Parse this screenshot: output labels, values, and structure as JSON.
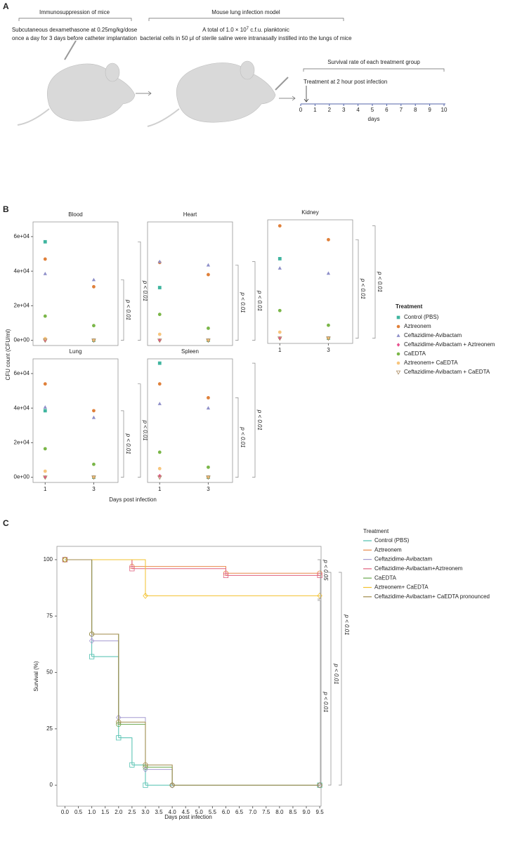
{
  "panel_labels": [
    "A",
    "B",
    "C"
  ],
  "schematic": {
    "immunosuppression": {
      "title": "Immunosuppression of mice",
      "lines": [
        "Subcutaneous dexamethasone at 0.25mg/kg/dose",
        "once a day for 3 days before catheter implantation"
      ]
    },
    "infection": {
      "title": "Mouse  lung infection model",
      "line1": [
        "A total of 1.0 × 10",
        "7",
        " c.f.u. planktonic"
      ],
      "line2": "bacterial cells in 50 μl of sterile saline were intranasally instilled into the lungs of mice"
    },
    "survival": {
      "title": "Survival rate of each treatment group",
      "treatment": "Treatment at 2 hour post infection",
      "ticks": [
        0,
        1,
        2,
        3,
        4,
        5,
        6,
        7,
        8,
        9,
        10
      ],
      "label": "days"
    }
  },
  "chart_data": [
    {
      "type": "faceted_scatter",
      "y_label": "CFU count (CFU/ml)",
      "x_label": "Days post infection",
      "x": [
        1,
        3
      ],
      "xlim": [
        0.5,
        4
      ],
      "xticks": [
        1,
        3
      ],
      "ylim": [
        -3000,
        68500
      ],
      "yticks": [
        {
          "value": 0,
          "label": "0e+00"
        },
        {
          "value": 20000,
          "label": "2e+04"
        },
        {
          "value": 40000,
          "label": "4e+04"
        },
        {
          "value": 60000,
          "label": "6e+04"
        }
      ],
      "legend_title": "Treatment",
      "series": [
        {
          "name": "Control (PBS)",
          "color": "#3fb59f",
          "marker": "square"
        },
        {
          "name": "Aztreonem",
          "color": "#e0803a",
          "marker": "circle"
        },
        {
          "name": "Ceftazidime-Avibactam",
          "color": "#8e8fc9",
          "marker": "triangle"
        },
        {
          "name": "Ceftazidime-Avibactam + Aztreonem",
          "color": "#e8508f",
          "marker": "diamond"
        },
        {
          "name": "CaEDTA",
          "color": "#7ab648",
          "marker": "circle"
        },
        {
          "name": "Aztreonem+ CaEDTA",
          "color": "#f7c57d",
          "marker": "circle"
        },
        {
          "name": "Ceftazidime-Avibactam + CaEDTA",
          "color": "#a8875e",
          "marker": "triangle-down-open"
        }
      ],
      "facets": [
        {
          "title": "Blood",
          "values": [
            [
              57000,
              0
            ],
            [
              47000,
              31000
            ],
            [
              38500,
              35000
            ],
            [
              0,
              0
            ],
            [
              14000,
              8500
            ],
            [
              1000,
              0
            ],
            [
              0,
              0
            ]
          ],
          "annotations": [
            "p < 0.01",
            "p < 0.01"
          ]
        },
        {
          "title": "Heart",
          "values": [
            [
              30500,
              0
            ],
            [
              45000,
              38000
            ],
            [
              45500,
              43500
            ],
            [
              0,
              0
            ],
            [
              15000,
              7000
            ],
            [
              3500,
              0
            ],
            [
              0,
              0
            ]
          ],
          "annotations": [
            "p < 0.01",
            "p < 0.01"
          ]
        },
        {
          "title": "Kidney",
          "values": [
            [
              46000,
              0
            ],
            [
              65000,
              57000
            ],
            [
              40500,
              37500
            ],
            [
              0,
              0
            ],
            [
              16000,
              7500
            ],
            [
              3500,
              0
            ],
            [
              0,
              0
            ]
          ],
          "annotations": [
            "p < 0.01",
            "p < 0.01"
          ]
        },
        {
          "title": "Lung",
          "values": [
            [
              38500,
              0
            ],
            [
              54000,
              38500
            ],
            [
              40500,
              34500
            ],
            [
              0,
              0
            ],
            [
              16500,
              7500
            ],
            [
              3500,
              0
            ],
            [
              0,
              0
            ]
          ],
          "annotations": [
            "p < 0.01",
            "p < 0.01"
          ]
        },
        {
          "title": "Spleen",
          "values": [
            [
              66000,
              0
            ],
            [
              54000,
              46000
            ],
            [
              42500,
              40000
            ],
            [
              800,
              0
            ],
            [
              14500,
              5800
            ],
            [
              5000,
              0
            ],
            [
              0,
              0
            ]
          ],
          "annotations": [
            "p < 0.01",
            "p < 0.01"
          ]
        }
      ]
    },
    {
      "type": "survival_step",
      "x_label": "Days post infection",
      "y_label": "Survival (%)",
      "xlim": [
        -0.3,
        9.55
      ],
      "xticks": [
        {
          "value": 0,
          "label": "0.0"
        },
        0.5,
        {
          "value": 1,
          "label": "1.0"
        },
        1.5,
        {
          "value": 2,
          "label": "2.0"
        },
        2.5,
        {
          "value": 3,
          "label": "3.0"
        },
        3.5,
        {
          "value": 4,
          "label": "4.0"
        },
        4.5,
        {
          "value": 5,
          "label": "5.0"
        },
        5.5,
        {
          "value": 6,
          "label": "6.0"
        },
        6.5,
        {
          "value": 7,
          "label": "7.0"
        },
        7.5,
        {
          "value": 8,
          "label": "8.0"
        },
        8.5,
        {
          "value": 9,
          "label": "9.0"
        },
        9.5
      ],
      "ylim": [
        -9.3,
        105.9
      ],
      "yticks": [
        0,
        25,
        50,
        75,
        100
      ],
      "legend_title": "Treatment",
      "annotations": [
        "p < 0.05",
        "p < 0.01",
        "p < 0.01",
        "p < 0.01"
      ],
      "series": [
        {
          "name": "Control (PBS)",
          "color": "#4dbfae",
          "marker": "square",
          "x": [
            0,
            1,
            2,
            2.5,
            3,
            9.5
          ],
          "values": [
            100,
            57,
            21,
            9,
            0,
            0
          ]
        },
        {
          "name": "Aztreonem",
          "color": "#e8894a",
          "marker": "circle",
          "x": [
            0,
            2.5,
            6,
            9.5
          ],
          "values": [
            100,
            97,
            94,
            94
          ]
        },
        {
          "name": "Ceftazidime-Avibactam",
          "color": "#a59bd0",
          "marker": "diamond",
          "x": [
            0,
            1,
            2,
            3,
            4,
            9.5
          ],
          "values": [
            100,
            64,
            30,
            7,
            0,
            0
          ]
        },
        {
          "name": "Ceftazidime-Avibactam+Aztreonem",
          "color": "#e0607e",
          "marker": "square",
          "x": [
            0,
            2.5,
            6,
            9.5
          ],
          "values": [
            100,
            96,
            93,
            93
          ]
        },
        {
          "name": "CaEDTA",
          "color": "#6aa84f",
          "marker": "circle",
          "x": [
            0,
            1,
            2,
            3,
            4,
            9.5
          ],
          "values": [
            100,
            67,
            27,
            8,
            0,
            0
          ]
        },
        {
          "name": "Aztreonem+ CaEDTA",
          "color": "#f2c12e",
          "marker": "diamond",
          "x": [
            0,
            3,
            9.5
          ],
          "values": [
            100,
            84,
            84
          ]
        },
        {
          "name": "Ceftazidime-Avibactam+ CaEDTA pronounced",
          "color": "#a08a4a",
          "marker": "circle",
          "x": [
            0,
            1,
            2,
            3,
            4,
            9.5
          ],
          "values": [
            100,
            67,
            28,
            9,
            0,
            0
          ]
        }
      ]
    }
  ]
}
